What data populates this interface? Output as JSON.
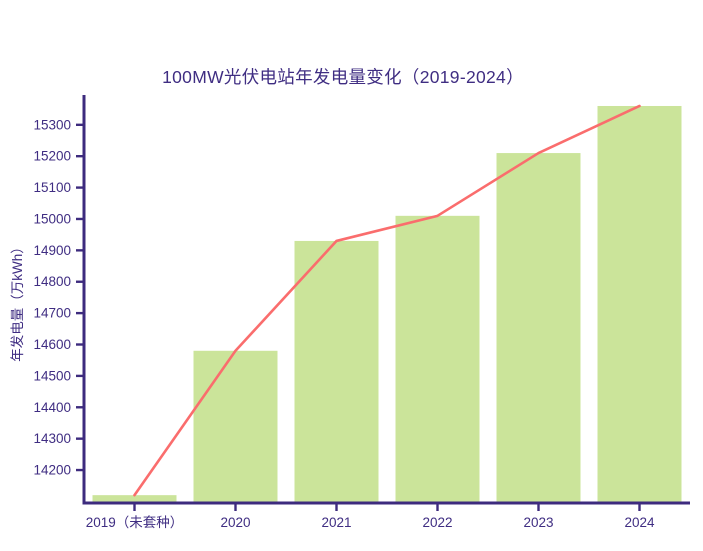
{
  "chart_data": {
    "type": "bar",
    "title": "100MW光伏电站年发电量变化（2019-2024）",
    "xlabel": "",
    "ylabel": "年发电量（万kWh）",
    "categories": [
      "2019（未套种）",
      "2020",
      "2021",
      "2022",
      "2023",
      "2024"
    ],
    "values": [
      14120,
      14580,
      14930,
      15010,
      15210,
      15360
    ],
    "series": [
      {
        "name": "annual-generation-bars",
        "type": "bar",
        "values": [
          14120,
          14580,
          14930,
          15010,
          15210,
          15360
        ]
      },
      {
        "name": "annual-generation-trend-line",
        "type": "line",
        "values": [
          14120,
          14580,
          14930,
          15010,
          15210,
          15360
        ]
      }
    ],
    "ylim": [
      14095,
      15395
    ],
    "yticks": [
      14200,
      14300,
      14400,
      14500,
      14600,
      14700,
      14800,
      14900,
      15000,
      15100,
      15200,
      15300
    ],
    "grid": false,
    "legend": "none",
    "colors": {
      "bar": "#cbe49a",
      "line": "#fa6d6d",
      "axis": "#3d2b7e",
      "text": "#3f2d82",
      "background": "#ffffff"
    }
  }
}
